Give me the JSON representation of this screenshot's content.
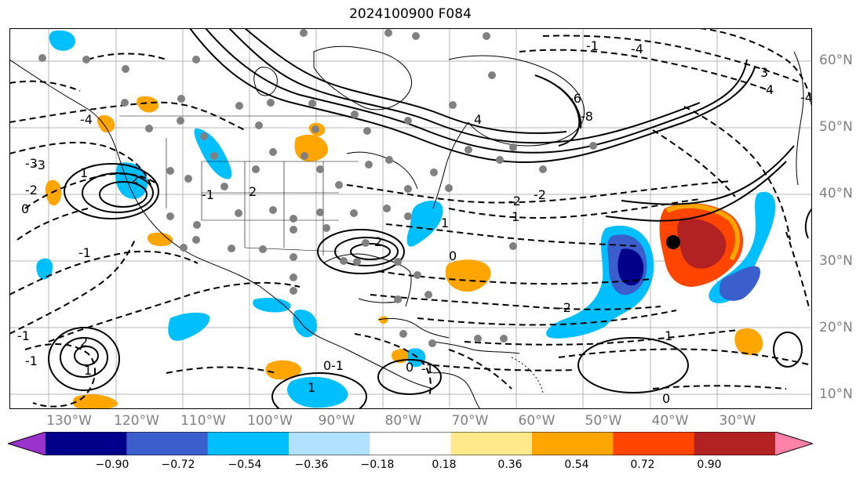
{
  "title": "2024100900 F084",
  "lat_labels": [
    "60°N",
    "50°N",
    "40°N",
    "30°N",
    "20°N",
    "10°N"
  ],
  "lon_labels": [
    "130°W",
    "120°W",
    "110°W",
    "100°W",
    "90°W",
    "80°W",
    "70°W",
    "60°W",
    "50°W",
    "40°W",
    "30°W"
  ],
  "colorbar": {
    "ticks": [
      "−0.90",
      "−0.72",
      "−0.54",
      "−0.36",
      "−0.18",
      "0.18",
      "0.36",
      "0.54",
      "0.72",
      "0.90"
    ],
    "colors": [
      "#9932cc",
      "#00008b",
      "#3a5fcd",
      "#00bfff",
      "#b0e2ff",
      "#ffffff",
      "#ffe98a",
      "#ffa500",
      "#ff4500",
      "#b22222",
      "#ff82ab"
    ]
  },
  "contour_labels": [
    "-2",
    "-3",
    "-4",
    "-1",
    "0",
    "1",
    "2",
    "-6",
    "-8",
    "4",
    "-2",
    "2",
    "-2",
    "-1",
    "1",
    "-1",
    "1",
    "-1",
    "0",
    "-2",
    "1",
    "0",
    "1",
    "-1",
    "2",
    "0",
    "1",
    "0",
    "-1",
    "2",
    "-4",
    "4",
    "3",
    "-1",
    "-3",
    "-4"
  ]
}
